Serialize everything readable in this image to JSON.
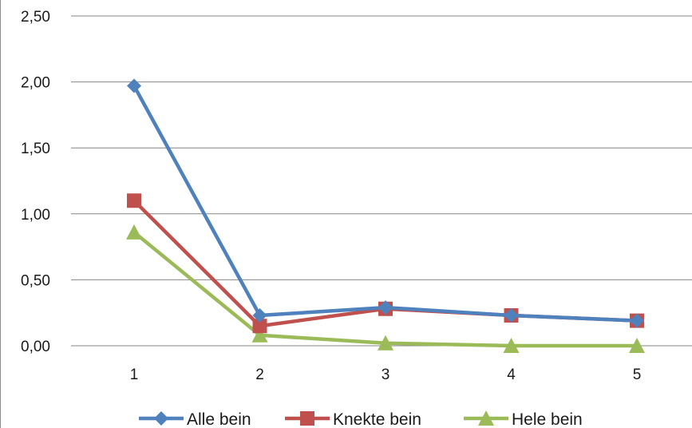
{
  "chart_data": {
    "type": "line",
    "x": [
      "1",
      "2",
      "3",
      "4",
      "5"
    ],
    "series": [
      {
        "name": "Alle bein",
        "values": [
          1.97,
          0.23,
          0.29,
          0.23,
          0.19
        ],
        "color": "#4f81bd",
        "marker": "diamond"
      },
      {
        "name": "Knekte bein",
        "values": [
          1.1,
          0.15,
          0.28,
          0.23,
          0.19
        ],
        "color": "#c0504d",
        "marker": "square"
      },
      {
        "name": "Hele bein",
        "values": [
          0.86,
          0.08,
          0.02,
          0.0,
          0.0
        ],
        "color": "#9bbb59",
        "marker": "triangle"
      }
    ],
    "yticks": [
      "0,00",
      "0,50",
      "1,00",
      "1,50",
      "2,00",
      "2,50"
    ],
    "ylim": [
      0,
      2.5
    ],
    "grid": true,
    "legend_position": "bottom",
    "title": "",
    "xlabel": "",
    "ylabel": ""
  }
}
